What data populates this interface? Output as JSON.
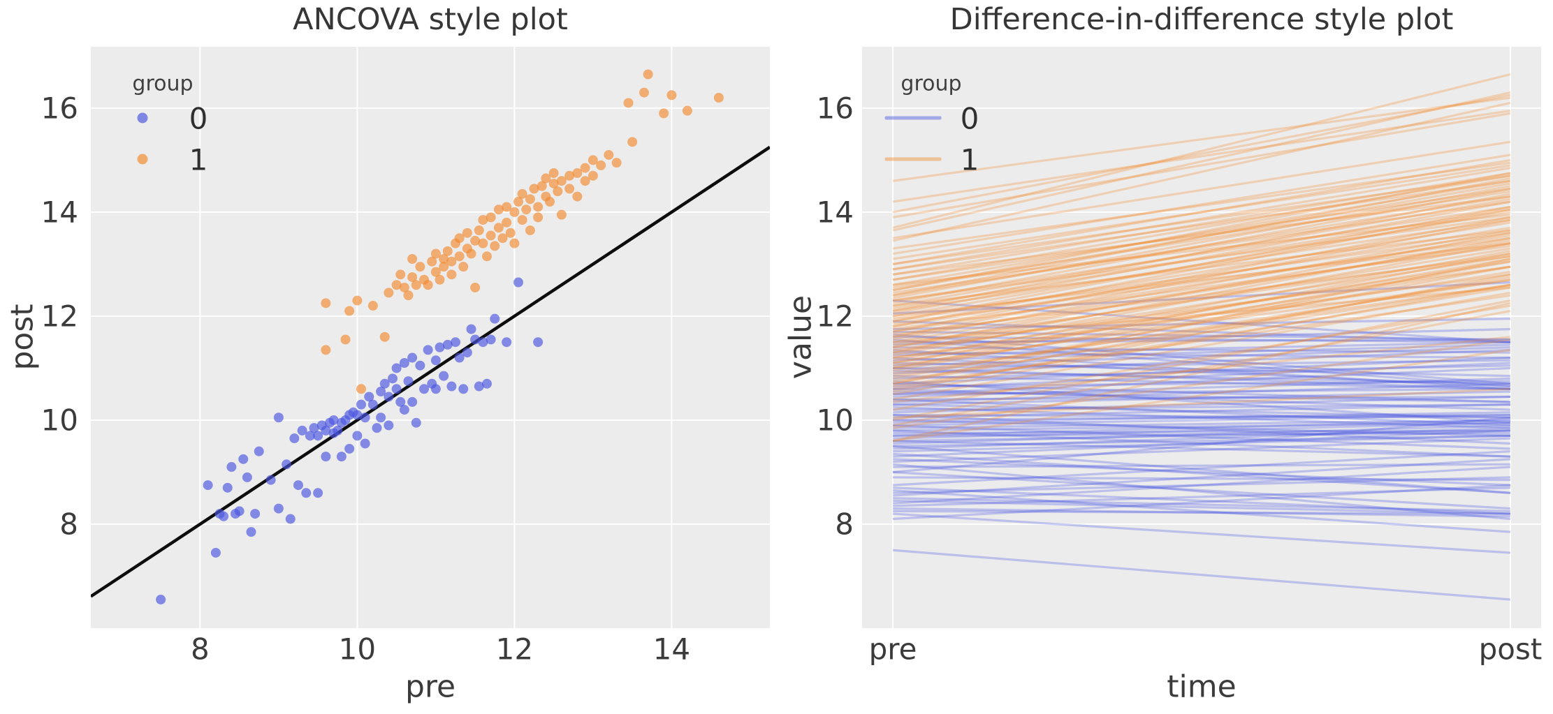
{
  "figure": {
    "background": "#ffffff",
    "panel_background": "#ececec",
    "grid_color": "#ffffff",
    "tick_color": "#3b3b3b",
    "title_color": "#363636"
  },
  "palette": {
    "group0_base": "#4A55E0",
    "group1_base": "#F28B2F",
    "identity_line": "#0d0d0d",
    "scatter_alpha": 0.65,
    "line_alpha": 0.3,
    "legend_swatch_alpha": 0.45
  },
  "chart_data": [
    {
      "type": "scatter",
      "title": "ANCOVA style plot",
      "xlabel": "pre",
      "ylabel": "post",
      "x_ticks": [
        "8",
        "10",
        "12",
        "14"
      ],
      "x_tick_values": [
        8,
        10,
        12,
        14
      ],
      "y_ticks": [
        "8",
        "10",
        "12",
        "14",
        "16"
      ],
      "y_tick_values": [
        8,
        10,
        12,
        14,
        16
      ],
      "xlim": [
        6.61,
        15.25
      ],
      "ylim": [
        6.0,
        17.18
      ],
      "grid": true,
      "legend": {
        "title": "group",
        "position": "upper left",
        "entries": [
          {
            "label": "0"
          },
          {
            "label": "1"
          }
        ]
      },
      "identity_line": {
        "x0": 6.61,
        "y0": 6.61,
        "x1": 15.25,
        "y1": 15.25,
        "note": "y = x reference line"
      },
      "series": [
        {
          "name": "0",
          "color": "#4A55E0",
          "points": [
            [
              7.5,
              6.55
            ],
            [
              8.1,
              8.75
            ],
            [
              8.2,
              7.45
            ],
            [
              8.25,
              8.2
            ],
            [
              8.3,
              8.15
            ],
            [
              8.35,
              8.7
            ],
            [
              8.4,
              9.1
            ],
            [
              8.45,
              8.2
            ],
            [
              8.5,
              8.25
            ],
            [
              8.55,
              9.25
            ],
            [
              8.6,
              8.9
            ],
            [
              8.65,
              7.85
            ],
            [
              8.7,
              8.2
            ],
            [
              8.75,
              9.4
            ],
            [
              8.9,
              8.85
            ],
            [
              9.0,
              10.05
            ],
            [
              9.0,
              8.3
            ],
            [
              9.1,
              9.15
            ],
            [
              9.15,
              8.1
            ],
            [
              9.2,
              9.65
            ],
            [
              9.25,
              8.75
            ],
            [
              9.3,
              9.8
            ],
            [
              9.35,
              8.6
            ],
            [
              9.4,
              9.7
            ],
            [
              9.45,
              9.85
            ],
            [
              9.5,
              9.7
            ],
            [
              9.5,
              8.6
            ],
            [
              9.55,
              9.9
            ],
            [
              9.6,
              9.8
            ],
            [
              9.6,
              9.3
            ],
            [
              9.65,
              9.95
            ],
            [
              9.7,
              9.75
            ],
            [
              9.7,
              10.0
            ],
            [
              9.75,
              9.8
            ],
            [
              9.8,
              9.95
            ],
            [
              9.8,
              9.3
            ],
            [
              9.85,
              10.0
            ],
            [
              9.9,
              10.1
            ],
            [
              9.9,
              9.45
            ],
            [
              9.95,
              10.15
            ],
            [
              10.0,
              10.1
            ],
            [
              10.0,
              9.7
            ],
            [
              10.05,
              10.3
            ],
            [
              10.1,
              10.05
            ],
            [
              10.1,
              9.55
            ],
            [
              10.15,
              10.45
            ],
            [
              10.2,
              10.3
            ],
            [
              10.25,
              9.85
            ],
            [
              10.3,
              10.55
            ],
            [
              10.3,
              10.05
            ],
            [
              10.35,
              10.7
            ],
            [
              10.4,
              10.45
            ],
            [
              10.4,
              9.9
            ],
            [
              10.45,
              10.8
            ],
            [
              10.5,
              10.6
            ],
            [
              10.5,
              11.0
            ],
            [
              10.55,
              10.35
            ],
            [
              10.6,
              11.1
            ],
            [
              10.6,
              10.2
            ],
            [
              10.65,
              10.75
            ],
            [
              10.7,
              11.2
            ],
            [
              10.7,
              10.35
            ],
            [
              10.75,
              9.95
            ],
            [
              10.8,
              11.05
            ],
            [
              10.85,
              10.6
            ],
            [
              10.9,
              11.35
            ],
            [
              10.95,
              10.7
            ],
            [
              11.0,
              11.15
            ],
            [
              11.0,
              10.6
            ],
            [
              11.05,
              11.4
            ],
            [
              11.1,
              10.85
            ],
            [
              11.15,
              11.45
            ],
            [
              11.2,
              10.65
            ],
            [
              11.25,
              11.5
            ],
            [
              11.3,
              11.2
            ],
            [
              11.35,
              10.6
            ],
            [
              11.4,
              11.3
            ],
            [
              11.45,
              11.75
            ],
            [
              11.5,
              11.55
            ],
            [
              11.55,
              10.65
            ],
            [
              11.6,
              11.5
            ],
            [
              11.65,
              10.7
            ],
            [
              11.7,
              11.55
            ],
            [
              11.75,
              11.95
            ],
            [
              11.9,
              11.5
            ],
            [
              12.05,
              12.65
            ],
            [
              12.3,
              11.5
            ]
          ]
        },
        {
          "name": "1",
          "color": "#F28B2F",
          "points": [
            [
              9.6,
              11.35
            ],
            [
              9.6,
              12.25
            ],
            [
              9.85,
              11.55
            ],
            [
              9.9,
              12.1
            ],
            [
              10.0,
              12.3
            ],
            [
              10.05,
              10.6
            ],
            [
              10.2,
              12.2
            ],
            [
              10.35,
              11.6
            ],
            [
              10.4,
              12.45
            ],
            [
              10.5,
              12.6
            ],
            [
              10.55,
              12.8
            ],
            [
              10.6,
              12.55
            ],
            [
              10.65,
              12.4
            ],
            [
              10.7,
              12.75
            ],
            [
              10.7,
              13.1
            ],
            [
              10.75,
              12.6
            ],
            [
              10.8,
              12.95
            ],
            [
              10.85,
              12.7
            ],
            [
              10.9,
              12.6
            ],
            [
              10.95,
              13.05
            ],
            [
              11.0,
              12.85
            ],
            [
              11.0,
              13.2
            ],
            [
              11.05,
              12.7
            ],
            [
              11.1,
              13.1
            ],
            [
              11.1,
              12.95
            ],
            [
              11.15,
              13.25
            ],
            [
              11.2,
              13.05
            ],
            [
              11.2,
              12.8
            ],
            [
              11.25,
              13.4
            ],
            [
              11.3,
              13.15
            ],
            [
              11.3,
              13.5
            ],
            [
              11.35,
              12.95
            ],
            [
              11.4,
              13.3
            ],
            [
              11.4,
              13.6
            ],
            [
              11.45,
              13.2
            ],
            [
              11.5,
              13.45
            ],
            [
              11.5,
              12.55
            ],
            [
              11.55,
              13.65
            ],
            [
              11.6,
              13.4
            ],
            [
              11.6,
              13.85
            ],
            [
              11.65,
              13.15
            ],
            [
              11.7,
              13.55
            ],
            [
              11.7,
              13.9
            ],
            [
              11.75,
              13.35
            ],
            [
              11.8,
              13.7
            ],
            [
              11.8,
              14.05
            ],
            [
              11.85,
              13.5
            ],
            [
              11.9,
              13.8
            ],
            [
              11.9,
              14.1
            ],
            [
              11.95,
              13.6
            ],
            [
              12.0,
              14.0
            ],
            [
              12.0,
              13.4
            ],
            [
              12.05,
              14.2
            ],
            [
              12.1,
              13.85
            ],
            [
              12.1,
              14.35
            ],
            [
              12.15,
              14.05
            ],
            [
              12.2,
              13.65
            ],
            [
              12.2,
              14.25
            ],
            [
              12.25,
              14.45
            ],
            [
              12.3,
              14.1
            ],
            [
              12.3,
              13.9
            ],
            [
              12.35,
              14.5
            ],
            [
              12.4,
              14.3
            ],
            [
              12.4,
              14.65
            ],
            [
              12.45,
              14.2
            ],
            [
              12.5,
              14.55
            ],
            [
              12.5,
              14.75
            ],
            [
              12.55,
              14.4
            ],
            [
              12.6,
              14.6
            ],
            [
              12.6,
              13.95
            ],
            [
              12.7,
              14.7
            ],
            [
              12.7,
              14.45
            ],
            [
              12.8,
              14.75
            ],
            [
              12.8,
              14.3
            ],
            [
              12.9,
              14.85
            ],
            [
              12.9,
              14.6
            ],
            [
              13.0,
              14.7
            ],
            [
              13.0,
              15.0
            ],
            [
              13.1,
              14.9
            ],
            [
              13.2,
              15.1
            ],
            [
              13.3,
              14.95
            ],
            [
              13.45,
              16.1
            ],
            [
              13.5,
              15.35
            ],
            [
              13.65,
              16.3
            ],
            [
              13.7,
              16.65
            ],
            [
              13.9,
              15.9
            ],
            [
              14.0,
              16.25
            ],
            [
              14.2,
              15.95
            ],
            [
              14.6,
              16.2
            ]
          ]
        }
      ]
    },
    {
      "type": "line",
      "title": "Difference-in-difference style plot",
      "xlabel": "time",
      "ylabel": "value",
      "categories": [
        "pre",
        "post"
      ],
      "y_ticks": [
        "8",
        "10",
        "12",
        "14",
        "16"
      ],
      "y_tick_values": [
        8,
        10,
        12,
        14,
        16
      ],
      "ylim": [
        6.0,
        17.18
      ],
      "grid": true,
      "legend": {
        "title": "group",
        "position": "upper left",
        "entries": [
          {
            "label": "0"
          },
          {
            "label": "1"
          }
        ]
      },
      "series_note": "one line per unit connecting its value at pre to its value at post; identical [pre, post] pairs as chart_data[0].series",
      "series_source": "chart_data.0.series"
    }
  ]
}
